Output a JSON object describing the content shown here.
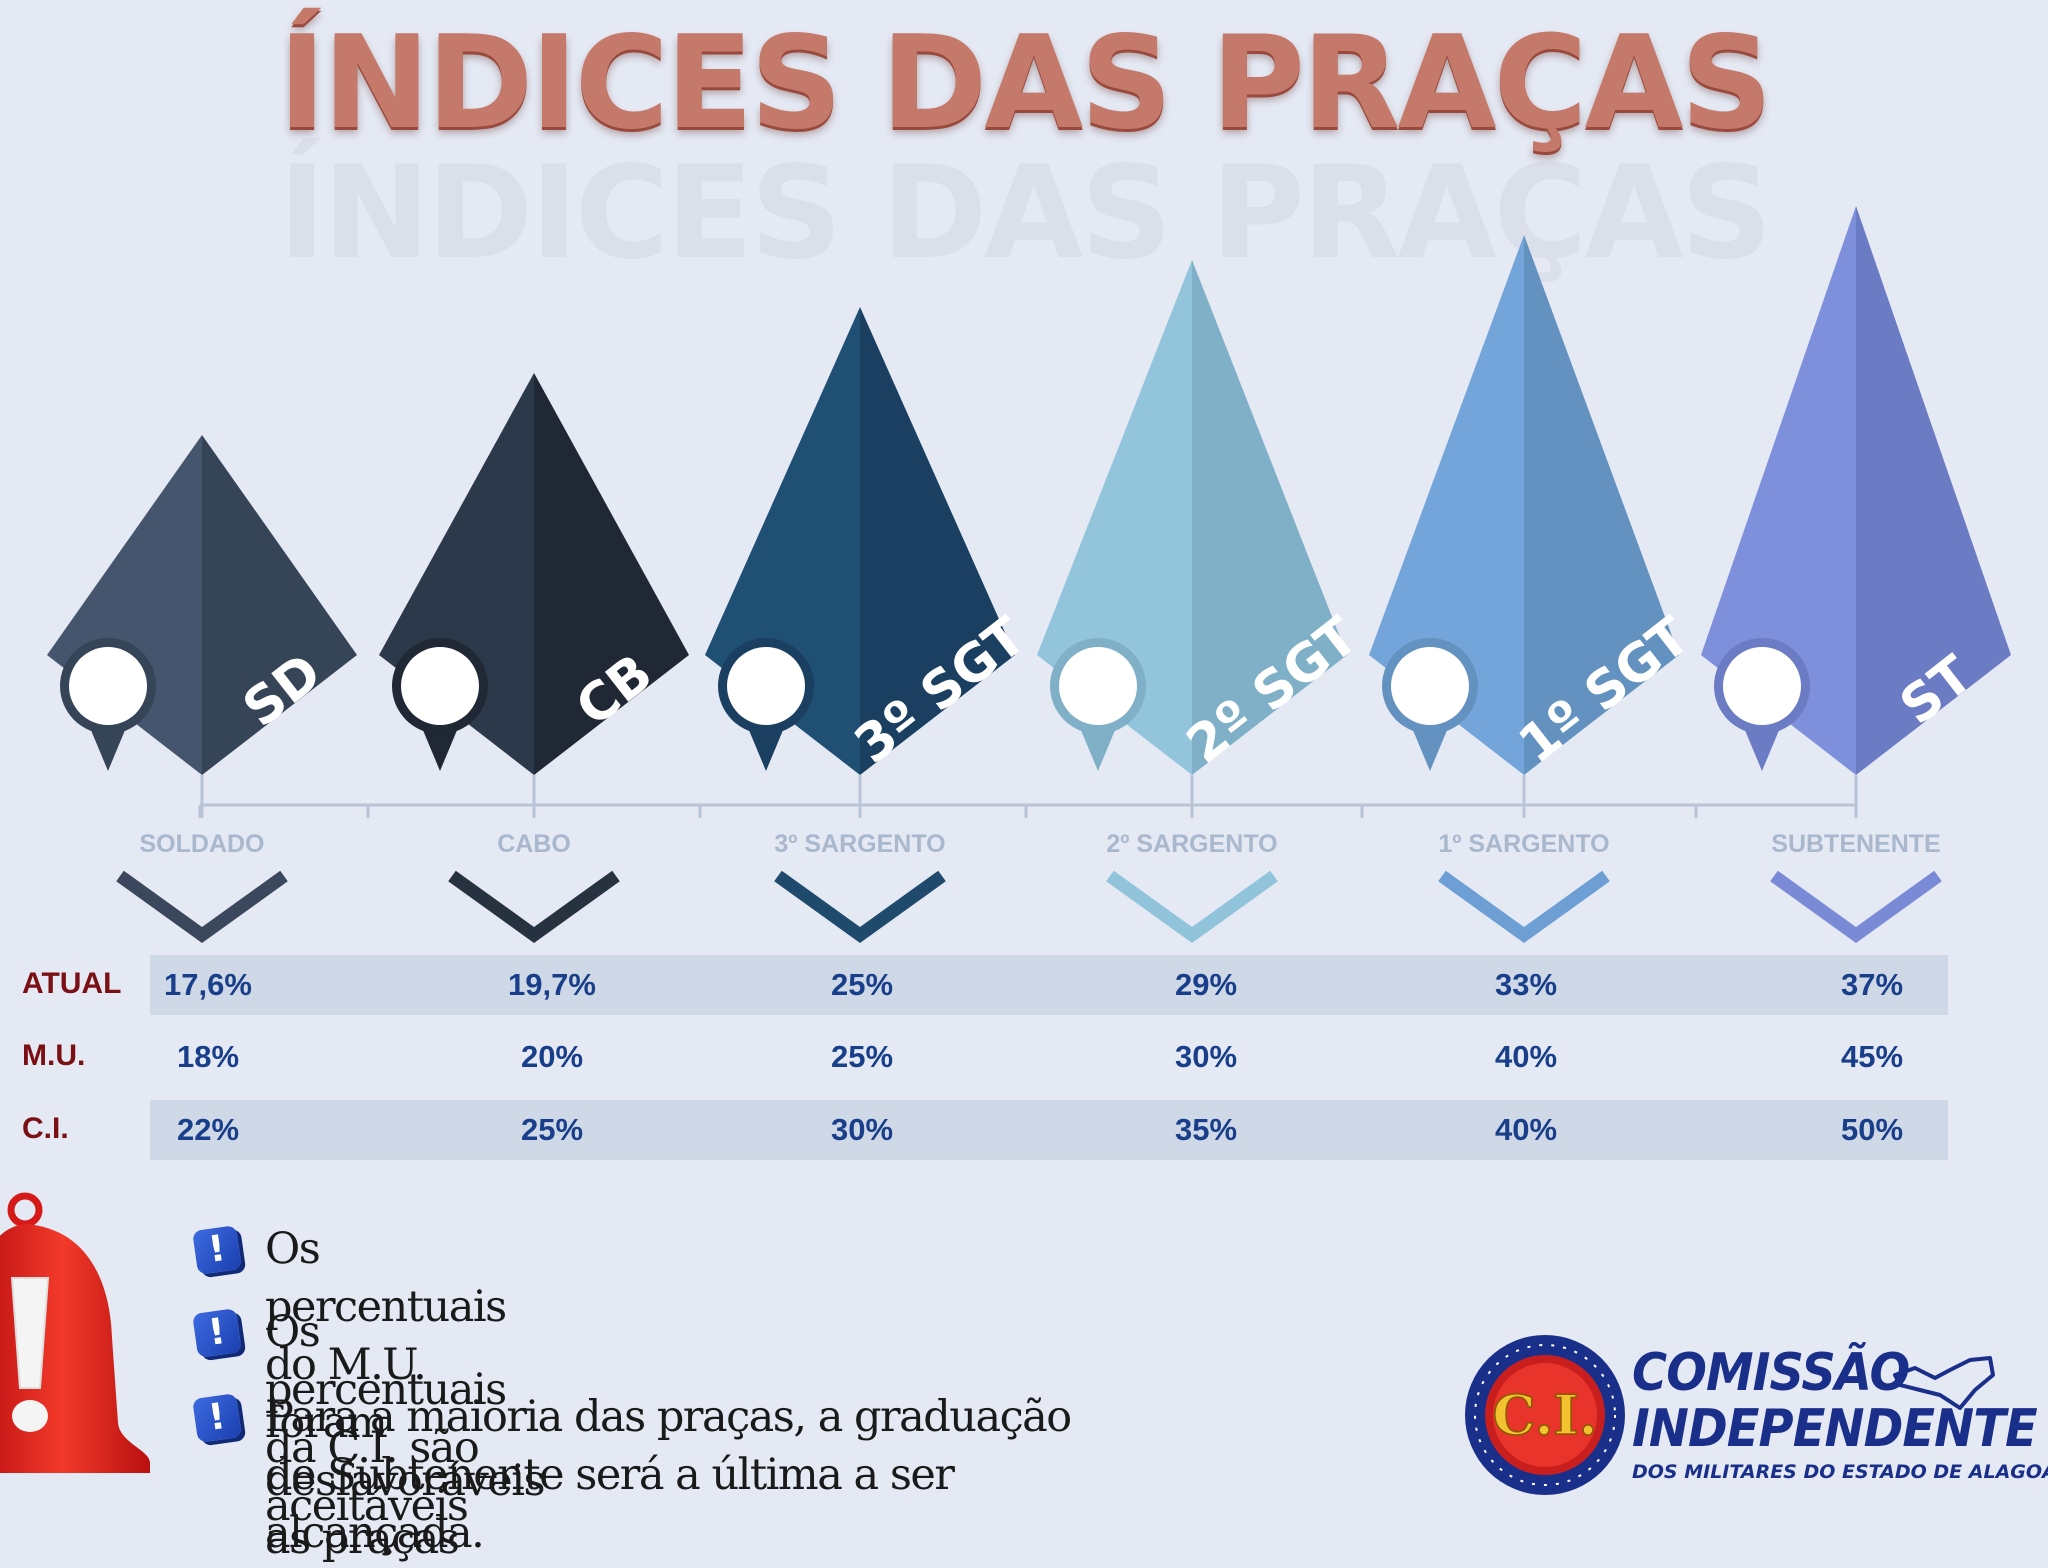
{
  "title": "ÍNDICES DAS PRAÇAS",
  "ranks": [
    {
      "abbr": "SD",
      "name": "SOLDADO",
      "color_left": "#46556e",
      "color_right": "#364458",
      "chev": "#3a475c"
    },
    {
      "abbr": "CB",
      "name": "CABO",
      "color_left": "#2c394a",
      "color_right": "#1f2834",
      "chev": "#263240"
    },
    {
      "abbr": "3º SGT",
      "name": "3º SARGENTO",
      "color_left": "#204f74",
      "color_right": "#1a3f60",
      "chev": "#1f4a6b"
    },
    {
      "abbr": "2º SGT",
      "name": "2º SARGENTO",
      "color_left": "#92c5dc",
      "color_right": "#7fb0c7",
      "chev": "#91c4da"
    },
    {
      "abbr": "1º SGT",
      "name": "1º SARGENTO",
      "color_left": "#74a5da",
      "color_right": "#6391c0",
      "chev": "#6e9fd4"
    },
    {
      "abbr": "ST",
      "name": "SUBTENENTE",
      "color_left": "#7e8fdc",
      "color_right": "#6b7bc4",
      "chev": "#7a8ad6"
    }
  ],
  "chart_data": {
    "type": "table",
    "categories": [
      "SOLDADO",
      "CABO",
      "3º SARGENTO",
      "2º SARGENTO",
      "1º SARGENTO",
      "SUBTENENTE"
    ],
    "series": [
      {
        "name": "ATUAL",
        "labels": [
          "17,6%",
          "19,7%",
          "25%",
          "29%",
          "33%",
          "37%"
        ],
        "values": [
          17.6,
          19.7,
          25,
          29,
          33,
          37
        ]
      },
      {
        "name": "M.U.",
        "labels": [
          "18%",
          "20%",
          "25%",
          "30%",
          "40%",
          "45%"
        ],
        "values": [
          18,
          20,
          25,
          30,
          40,
          45
        ]
      },
      {
        "name": "C.I.",
        "labels": [
          "22%",
          "25%",
          "30%",
          "35%",
          "40%",
          "50%"
        ],
        "values": [
          22,
          25,
          30,
          35,
          40,
          50
        ]
      }
    ]
  },
  "notes": [
    "Os percentuais do M.U. foram desfavoráveis as praças",
    "Os percentuais da C.I. são aceitáveis",
    "Para a maioria das praças, a graduação de Subtenente será a última a ser alcançada."
  ],
  "note_icon_glyph": "!",
  "logo": {
    "emblem": "C.I.",
    "line1": "COMISSÃO",
    "line2": "INDEPENDENTE",
    "line3": "DOS MILITARES DO ESTADO DE ALAGOAS"
  },
  "colors": {
    "background": "#e4e9f4",
    "title": "#c4796a",
    "row_label": "#7a0f14",
    "cell_text": "#1a3f8a",
    "band": "#cfd8e6"
  }
}
